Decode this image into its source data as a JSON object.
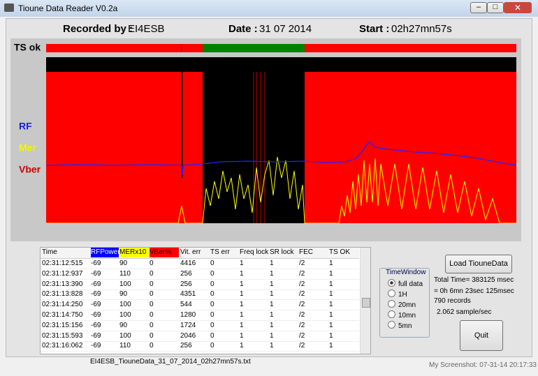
{
  "window": {
    "title": "Tioune Data Reader V0.2a"
  },
  "header": {
    "recorded_label": "Recorded by :",
    "recorded_value": "EI4ESB",
    "date_label": "Date :",
    "date_value": "31 07 2014",
    "start_label": "Start :",
    "start_value": "02h27mn57s"
  },
  "graph": {
    "ts_label": "TS ok",
    "rf_label": "RF",
    "mer_label": "Mer",
    "vber_label": "Vber"
  },
  "table": {
    "headers": [
      "Time",
      "RFPower",
      "MERx10",
      "VBer%",
      "Vit. err",
      "TS err",
      "Freq lock",
      "SR lock",
      "FEC",
      "TS OK"
    ],
    "rows": [
      [
        "02:31:12:515",
        "-69",
        "90",
        "0",
        "4416",
        "0",
        "1",
        "1",
        "/2",
        "1"
      ],
      [
        "02:31:12:937",
        "-69",
        "110",
        "0",
        "256",
        "0",
        "1",
        "1",
        "/2",
        "1"
      ],
      [
        "02:31:13:390",
        "-69",
        "100",
        "0",
        "256",
        "0",
        "1",
        "1",
        "/2",
        "1"
      ],
      [
        "02:31:13:828",
        "-69",
        "90",
        "0",
        "4351",
        "0",
        "1",
        "1",
        "/2",
        "1"
      ],
      [
        "02:31:14:250",
        "-69",
        "100",
        "0",
        "544",
        "0",
        "1",
        "1",
        "/2",
        "1"
      ],
      [
        "02:31:14:750",
        "-69",
        "100",
        "0",
        "1280",
        "0",
        "1",
        "1",
        "/2",
        "1"
      ],
      [
        "02:31:15:156",
        "-69",
        "90",
        "0",
        "1724",
        "0",
        "1",
        "1",
        "/2",
        "1"
      ],
      [
        "02:31:15:593",
        "-69",
        "100",
        "0",
        "2046",
        "0",
        "1",
        "1",
        "/2",
        "1"
      ],
      [
        "02:31:16:062",
        "-69",
        "110",
        "0",
        "256",
        "0",
        "1",
        "1",
        "/2",
        "1"
      ]
    ]
  },
  "time_window": {
    "title": "TimeWindow",
    "options": [
      "full data",
      "1H",
      "20mn",
      "10mn",
      "5mn"
    ]
  },
  "buttons": {
    "load": "Load TiouneData",
    "quit": "Quit"
  },
  "info": {
    "total_time": "Total Time= 383125 msec",
    "duration": "= 0h 6mn 23sec 125msec",
    "records": "790 records",
    "rate": "2.062 sample/sec"
  },
  "footer": {
    "filename": "EI4ESB_TiouneData_31_07_2014_02h27mn57s.txt",
    "screenshot": "My Screenshot: 07-31-14 20:17:33"
  }
}
